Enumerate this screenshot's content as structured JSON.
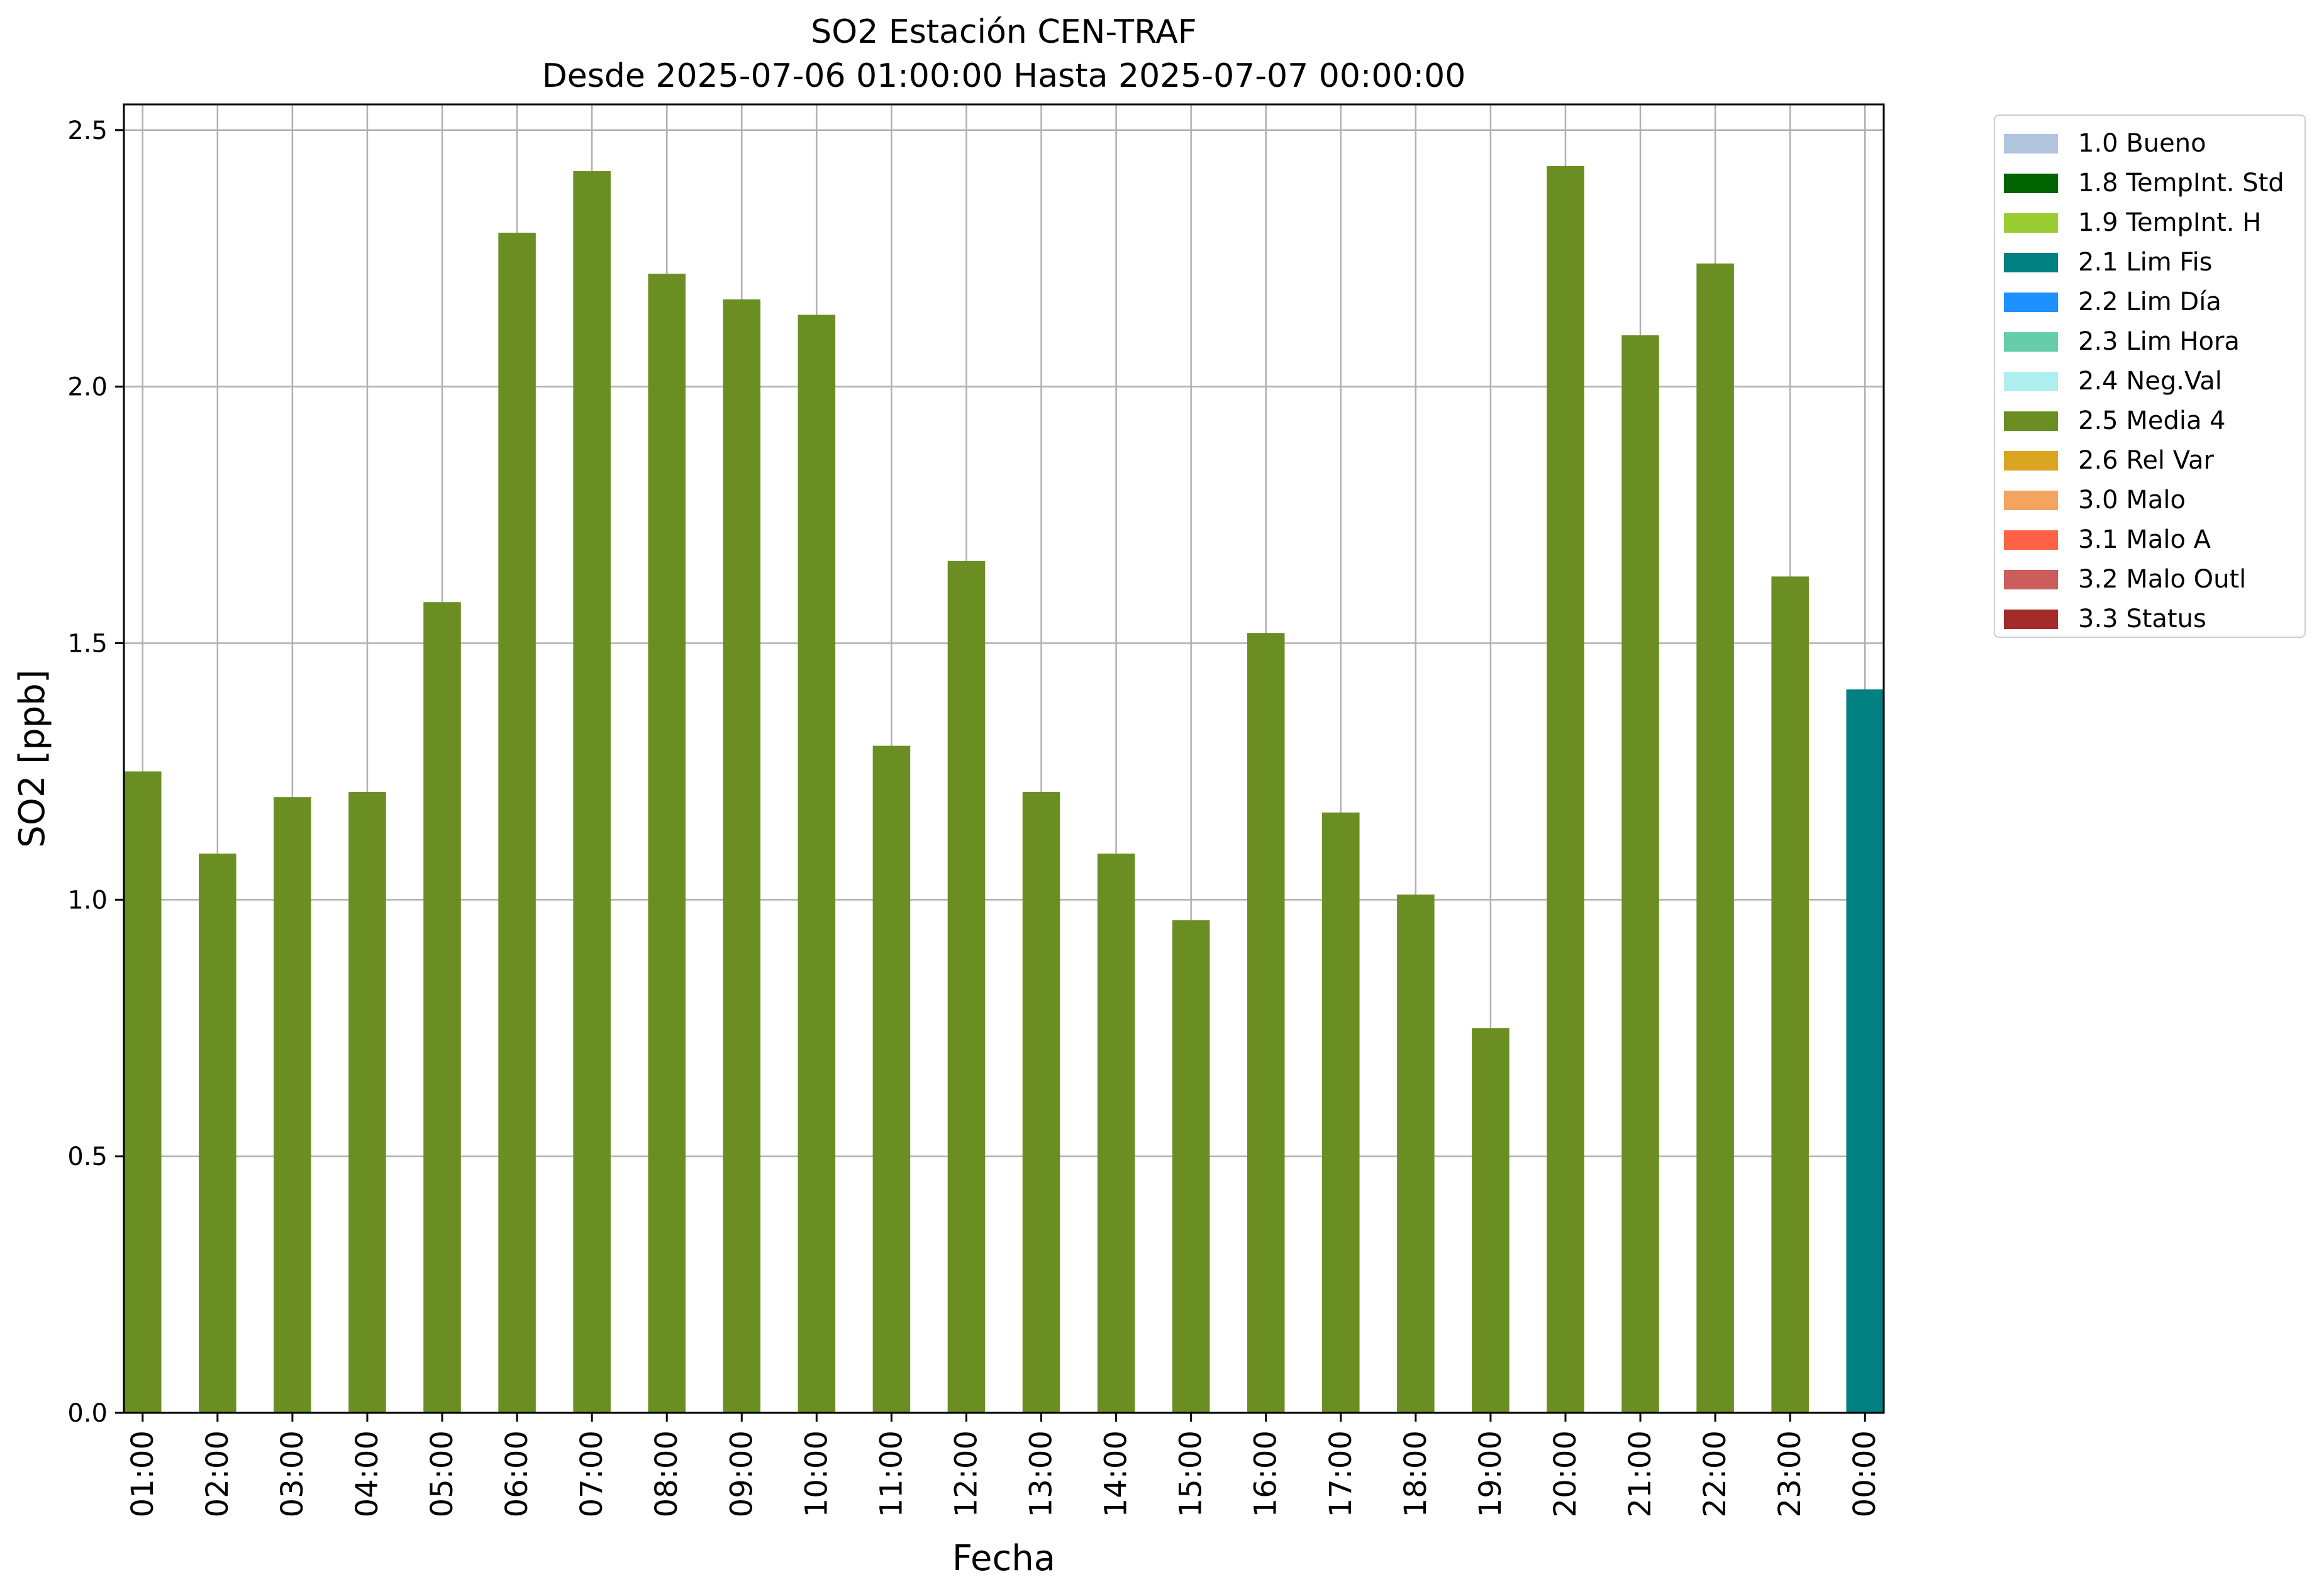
{
  "chart_data": {
    "type": "bar",
    "title": "SO2 Estación CEN-TRAF",
    "subtitle": "Desde 2025-07-06 01:00:00 Hasta 2025-07-07 00:00:00",
    "xlabel": "Fecha",
    "ylabel": "SO2 [ppb]",
    "ylim": [
      0,
      2.55
    ],
    "yticks": [
      "0.0",
      "0.5",
      "1.0",
      "1.5",
      "2.0",
      "2.5"
    ],
    "grid": true,
    "legend_position": "outside-right",
    "categories": [
      "01:00",
      "02:00",
      "03:00",
      "04:00",
      "05:00",
      "06:00",
      "07:00",
      "08:00",
      "09:00",
      "10:00",
      "11:00",
      "12:00",
      "13:00",
      "14:00",
      "15:00",
      "16:00",
      "17:00",
      "18:00",
      "19:00",
      "20:00",
      "21:00",
      "22:00",
      "23:00",
      "00:00"
    ],
    "values": [
      1.25,
      1.09,
      1.2,
      1.21,
      1.58,
      2.3,
      2.42,
      2.22,
      2.17,
      2.14,
      1.3,
      1.66,
      1.21,
      1.09,
      0.96,
      1.52,
      1.17,
      1.01,
      0.75,
      2.43,
      2.1,
      2.24,
      1.63,
      1.41
    ],
    "bar_flags": [
      "2.5 Media 4",
      "2.5 Media 4",
      "2.5 Media 4",
      "2.5 Media 4",
      "2.5 Media 4",
      "2.5 Media 4",
      "2.5 Media 4",
      "2.5 Media 4",
      "2.5 Media 4",
      "2.5 Media 4",
      "2.5 Media 4",
      "2.5 Media 4",
      "2.5 Media 4",
      "2.5 Media 4",
      "2.5 Media 4",
      "2.5 Media 4",
      "2.5 Media 4",
      "2.5 Media 4",
      "2.5 Media 4",
      "2.5 Media 4",
      "2.5 Media 4",
      "2.5 Media 4",
      "2.5 Media 4",
      "2.1 Lim Fis"
    ],
    "legend": [
      {
        "label": "1.0 Bueno",
        "color": "#b0c4de"
      },
      {
        "label": "1.8 TempInt. Std",
        "color": "#006400"
      },
      {
        "label": "1.9 TempInt. H",
        "color": "#9acd32"
      },
      {
        "label": "2.1 Lim Fis",
        "color": "#008080"
      },
      {
        "label": "2.2 Lim Día",
        "color": "#1e90ff"
      },
      {
        "label": "2.3 Lim Hora",
        "color": "#66cdaa"
      },
      {
        "label": "2.4 Neg.Val",
        "color": "#afeeee"
      },
      {
        "label": "2.5 Media 4",
        "color": "#6b8e23"
      },
      {
        "label": "2.6 Rel Var",
        "color": "#daa520"
      },
      {
        "label": "3.0 Malo",
        "color": "#f4a460"
      },
      {
        "label": "3.1 Malo A",
        "color": "#ff6347"
      },
      {
        "label": "3.2 Malo Outl",
        "color": "#cd5c5c"
      },
      {
        "label": "3.3 Status",
        "color": "#a52a2a"
      }
    ]
  }
}
